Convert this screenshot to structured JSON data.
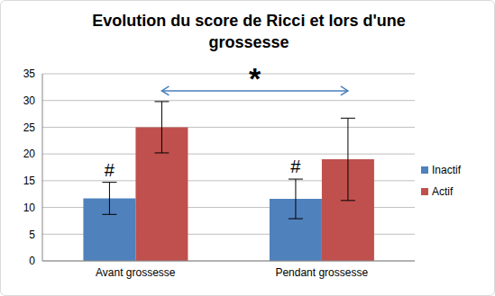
{
  "chart_data": {
    "type": "bar",
    "title": "Evolution du score de Ricci et lors d'une grossesse",
    "categories": [
      "Avant grossesse",
      "Pendant grossesse"
    ],
    "series": [
      {
        "name": "Inactif",
        "color": "#4f81bd",
        "values": [
          11.7,
          11.6
        ],
        "errors": [
          3.0,
          3.7
        ]
      },
      {
        "name": "Actif",
        "color": "#c0504d",
        "values": [
          25.0,
          19.0
        ],
        "errors": [
          4.8,
          7.7
        ]
      }
    ],
    "ylim": [
      0,
      35
    ],
    "yticks": [
      0,
      5,
      10,
      15,
      20,
      25,
      30,
      35
    ],
    "grid": true,
    "legend": "right",
    "annotations": [
      {
        "text": "#",
        "series": "Inactif",
        "category": "Avant grossesse"
      },
      {
        "text": "#",
        "series": "Inactif",
        "category": "Pendant grossesse"
      },
      {
        "text": "*",
        "series": "Actif",
        "categories": [
          "Avant grossesse",
          "Pendant grossesse"
        ]
      }
    ]
  }
}
